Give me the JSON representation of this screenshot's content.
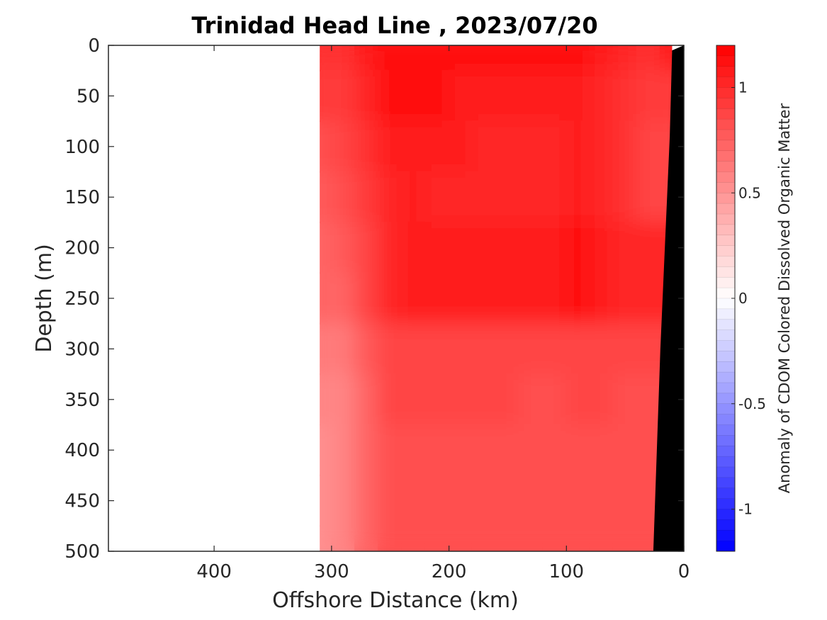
{
  "chart_data": {
    "type": "heatmap",
    "title": "Trinidad Head Line , 2023/07/20",
    "xlabel": "Offshore Distance (km)",
    "ylabel": "Depth (m)",
    "xlim": [
      490,
      0
    ],
    "ylim": [
      0,
      500
    ],
    "x_reversed": true,
    "y_reversed": true,
    "x_ticks": [
      400,
      300,
      200,
      100,
      0
    ],
    "y_ticks": [
      0,
      50,
      100,
      150,
      200,
      250,
      300,
      350,
      400,
      450,
      500
    ],
    "grid": false,
    "colorbar": {
      "label": "Anomaly of CDOM Colored Dissolved Organic Matter",
      "range": [
        -1.2,
        1.2
      ],
      "ticks": [
        1,
        0.5,
        0,
        -0.5,
        -1
      ],
      "levels": 48,
      "low_color": "#0000ff",
      "mid_color": "#ffffff",
      "high_color": "#ff0000"
    },
    "data_extent_km": [
      310,
      10
    ],
    "x": [
      310,
      290,
      270,
      250,
      230,
      210,
      190,
      170,
      150,
      130,
      110,
      90,
      70,
      50,
      30,
      10
    ],
    "depth": [
      0,
      50,
      100,
      150,
      200,
      250,
      300,
      350,
      400,
      450,
      500
    ],
    "values": [
      [
        0.95,
        0.98,
        1.05,
        1.13,
        1.13,
        1.12,
        1.12,
        1.12,
        1.12,
        1.12,
        1.1,
        1.1,
        1.08,
        1.02,
        0.98,
        1.05
      ],
      [
        0.9,
        0.92,
        1.0,
        1.1,
        1.12,
        1.1,
        1.08,
        1.08,
        1.08,
        1.08,
        1.05,
        1.05,
        1.02,
        0.95,
        0.9,
        null
      ],
      [
        0.8,
        0.85,
        0.95,
        1.05,
        1.08,
        1.05,
        1.05,
        1.03,
        1.03,
        1.03,
        1.03,
        1.05,
        1.02,
        0.95,
        0.88,
        null
      ],
      [
        0.75,
        0.8,
        0.9,
        1.02,
        1.05,
        1.03,
        1.03,
        1.0,
        1.02,
        1.02,
        1.02,
        1.05,
        1.02,
        0.95,
        0.85,
        null
      ],
      [
        0.7,
        0.75,
        0.88,
        1.0,
        1.05,
        1.05,
        1.05,
        1.05,
        1.05,
        1.05,
        1.05,
        1.1,
        1.08,
        1.0,
        null,
        null
      ],
      [
        0.7,
        0.72,
        0.85,
        1.0,
        1.05,
        1.05,
        1.05,
        1.05,
        1.05,
        1.05,
        1.08,
        1.1,
        1.08,
        1.0,
        null,
        null
      ],
      [
        0.6,
        0.62,
        0.75,
        0.85,
        0.88,
        0.88,
        0.85,
        0.85,
        0.85,
        0.85,
        0.85,
        0.88,
        0.88,
        0.85,
        null,
        null
      ],
      [
        0.55,
        0.58,
        0.72,
        0.85,
        0.85,
        0.85,
        0.85,
        0.85,
        0.85,
        0.82,
        0.82,
        0.85,
        0.85,
        0.82,
        null,
        null
      ],
      [
        0.5,
        0.55,
        0.72,
        0.82,
        0.82,
        0.82,
        0.82,
        0.82,
        0.82,
        0.82,
        0.8,
        0.82,
        0.82,
        0.8,
        null,
        null
      ],
      [
        0.5,
        0.55,
        0.72,
        0.82,
        0.82,
        0.82,
        0.82,
        0.82,
        0.82,
        0.8,
        0.8,
        0.82,
        0.82,
        0.8,
        null,
        null
      ],
      [
        0.5,
        0.55,
        0.72,
        0.82,
        0.82,
        0.82,
        0.82,
        0.82,
        0.82,
        0.8,
        0.8,
        0.82,
        0.82,
        0.8,
        null,
        null
      ]
    ],
    "bathymetry": {
      "color": "#000000",
      "depth_points": [
        [
          0,
          0
        ],
        [
          10,
          5
        ],
        [
          12,
          90
        ],
        [
          20,
          300
        ],
        [
          26,
          500
        ],
        [
          0,
          500
        ]
      ]
    }
  }
}
